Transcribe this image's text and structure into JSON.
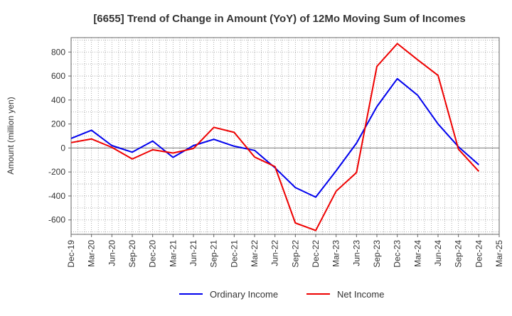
{
  "chart_data": {
    "type": "line",
    "title": "[6655]  Trend of Change in Amount (YoY) of 12Mo Moving Sum of Incomes",
    "ylabel": "Amount (million yen)",
    "xlabel": "",
    "ylim": [
      -720,
      920
    ],
    "yticks": [
      800,
      600,
      400,
      200,
      0,
      -200,
      -400,
      -600
    ],
    "x_ticks": [
      "Dec-19",
      "Mar-20",
      "Jun-20",
      "Sep-20",
      "Dec-20",
      "Mar-21",
      "Jun-21",
      "Sep-21",
      "Dec-21",
      "Mar-22",
      "Jun-22",
      "Sep-22",
      "Dec-22",
      "Mar-23",
      "Jun-23",
      "Sep-23",
      "Dec-23",
      "Mar-24",
      "Jun-24",
      "Sep-24",
      "Dec-24",
      "Mar-25"
    ],
    "grid": true,
    "legend": "bottom",
    "series": [
      {
        "name": "Ordinary Income",
        "color": "#0000ee",
        "values": [
          80,
          148,
          20,
          -35,
          58,
          -78,
          20,
          72,
          15,
          -20,
          -165,
          -330,
          -410,
          -190,
          40,
          345,
          578,
          440,
          200,
          10,
          -140
        ]
      },
      {
        "name": "Net Income",
        "color": "#ee0000",
        "values": [
          45,
          75,
          5,
          -92,
          -15,
          -42,
          -5,
          172,
          130,
          -75,
          -155,
          -625,
          -688,
          -360,
          -205,
          680,
          870,
          735,
          605,
          -10,
          -195
        ]
      }
    ]
  }
}
